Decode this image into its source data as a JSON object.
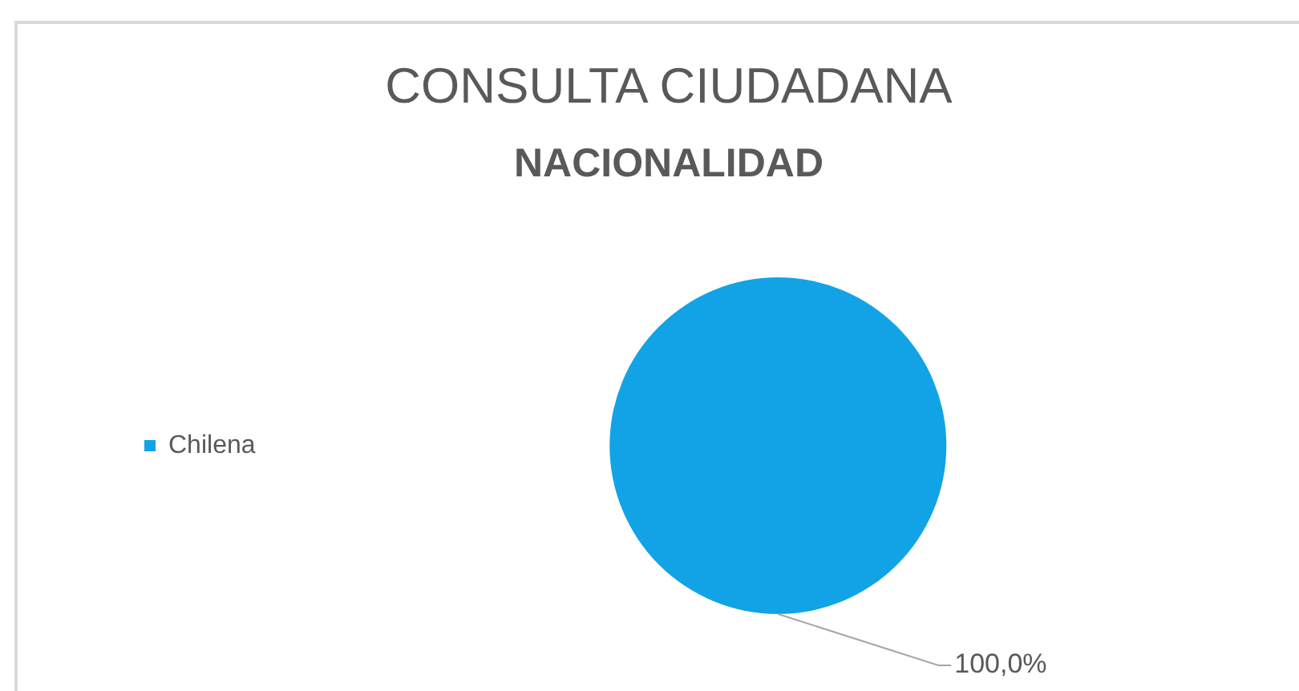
{
  "chart_data": {
    "type": "pie",
    "title": "CONSULTA CIUDADANA",
    "subtitle": "NACIONALIDAD",
    "categories": [
      "Chilena"
    ],
    "values": [
      100
    ],
    "colors": [
      "#12a3e6"
    ],
    "value_labels": [
      "100,0%"
    ],
    "legend": "left"
  }
}
